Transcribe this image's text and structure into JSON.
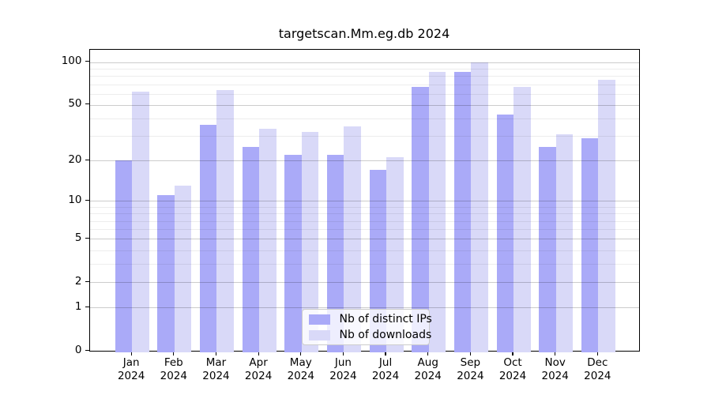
{
  "figure": {
    "title": "targetscan.Mm.eg.db 2024"
  },
  "chart_data": {
    "type": "bar",
    "title": "targetscan.Mm.eg.db 2024",
    "categories": [
      "Jan 2024",
      "Feb 2024",
      "Mar 2024",
      "Apr 2024",
      "May 2024",
      "Jun 2024",
      "Jul 2024",
      "Aug 2024",
      "Sep 2024",
      "Oct 2024",
      "Nov 2024",
      "Dec 2024"
    ],
    "series": [
      {
        "name": "Nb of distinct IPs",
        "color": "#aaaaf8",
        "values": [
          20,
          11,
          36,
          25,
          22,
          22,
          17,
          67,
          86,
          43,
          25,
          29
        ]
      },
      {
        "name": "Nb of downloads",
        "color": "#d9d9f8",
        "values": [
          62,
          13,
          64,
          34,
          32,
          35,
          21,
          85,
          100,
          67,
          31,
          75
        ]
      }
    ],
    "xlabel": "",
    "ylabel": "",
    "yscale": "log1p",
    "yticks": [
      0,
      1,
      2,
      5,
      10,
      20,
      50,
      100
    ],
    "ylim": [
      0,
      122
    ],
    "grid": "horizontal-major-and-minor",
    "legend_position": "lower center"
  },
  "colors": {
    "distinct_ips_bar": "#aaaaf8",
    "downloads_bar": "#d9d9f8",
    "grid_major": "#cccccc",
    "grid_minor": "#ececec",
    "axis_frame": "#000000",
    "legend_border": "#cccccc"
  }
}
